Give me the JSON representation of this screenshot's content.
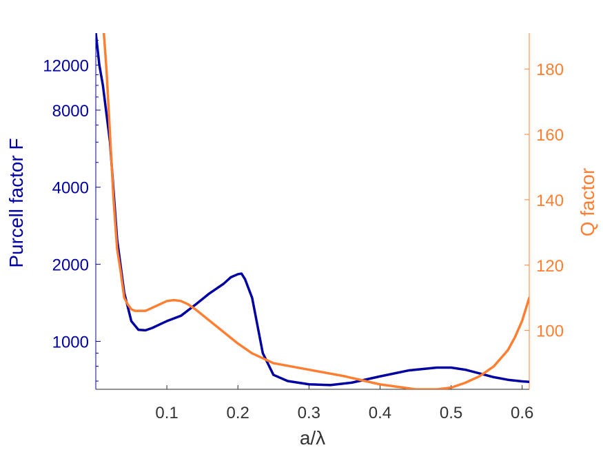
{
  "chart_data": {
    "type": "line",
    "xlabel": "a/λ",
    "ylabel_left": "Purcell factor F",
    "ylabel_right": "Q factor",
    "xlim": [
      0.0,
      0.61
    ],
    "xticks": [
      0.1,
      0.2,
      0.3,
      0.4,
      0.5,
      0.6
    ],
    "xtick_labels": [
      "0.1",
      "0.2",
      "0.3",
      "0.4",
      "0.5",
      "0.6"
    ],
    "left_axis": {
      "scale": "log",
      "ylim": [
        650,
        16000
      ],
      "ticks": [
        1000,
        2000,
        4000,
        8000,
        12000
      ],
      "tick_labels": [
        "1000",
        "2000",
        "4000",
        "8000",
        "12000"
      ],
      "minor_ticks": [
        700,
        800,
        900,
        3000,
        5000,
        6000,
        7000,
        9000,
        10000,
        11000,
        13000,
        14000,
        15000
      ],
      "color": "#0000a0"
    },
    "right_axis": {
      "scale": "linear",
      "ylim": [
        82,
        191
      ],
      "ticks": [
        100,
        120,
        140,
        160,
        180
      ],
      "tick_labels": [
        "100",
        "120",
        "140",
        "160",
        "180"
      ],
      "color": "#ff7f32"
    },
    "series": [
      {
        "axis": "left",
        "color": "#0000a0",
        "x": [
          0.0,
          0.005,
          0.01,
          0.02,
          0.03,
          0.04,
          0.05,
          0.06,
          0.07,
          0.08,
          0.09,
          0.1,
          0.12,
          0.14,
          0.16,
          0.18,
          0.19,
          0.2,
          0.205,
          0.21,
          0.22,
          0.235,
          0.25,
          0.27,
          0.3,
          0.33,
          0.36,
          0.4,
          0.44,
          0.48,
          0.5,
          0.52,
          0.54,
          0.56,
          0.58,
          0.6,
          0.61
        ],
        "y": [
          16000,
          12000,
          10000,
          6000,
          2500,
          1550,
          1200,
          1110,
          1105,
          1130,
          1165,
          1200,
          1260,
          1390,
          1540,
          1680,
          1780,
          1830,
          1840,
          1750,
          1480,
          900,
          740,
          700,
          680,
          675,
          690,
          730,
          770,
          790,
          790,
          775,
          750,
          725,
          708,
          698,
          695
        ]
      },
      {
        "axis": "right",
        "color": "#ff7f32",
        "x": [
          0.01,
          0.015,
          0.02,
          0.025,
          0.03,
          0.035,
          0.04,
          0.045,
          0.05,
          0.055,
          0.06,
          0.07,
          0.08,
          0.09,
          0.1,
          0.11,
          0.12,
          0.13,
          0.14,
          0.16,
          0.18,
          0.2,
          0.22,
          0.25,
          0.3,
          0.35,
          0.4,
          0.45,
          0.48,
          0.5,
          0.52,
          0.54,
          0.56,
          0.58,
          0.59,
          0.6,
          0.61
        ],
        "y": [
          195,
          180,
          160,
          140,
          125,
          118,
          110,
          108,
          106.5,
          106,
          106,
          106,
          107,
          108,
          109,
          109.3,
          109,
          108,
          106.5,
          103,
          99.5,
          96,
          93,
          90,
          88,
          86,
          83.5,
          82,
          82,
          82.5,
          84,
          86,
          89,
          94,
          98,
          103,
          110
        ]
      }
    ]
  }
}
